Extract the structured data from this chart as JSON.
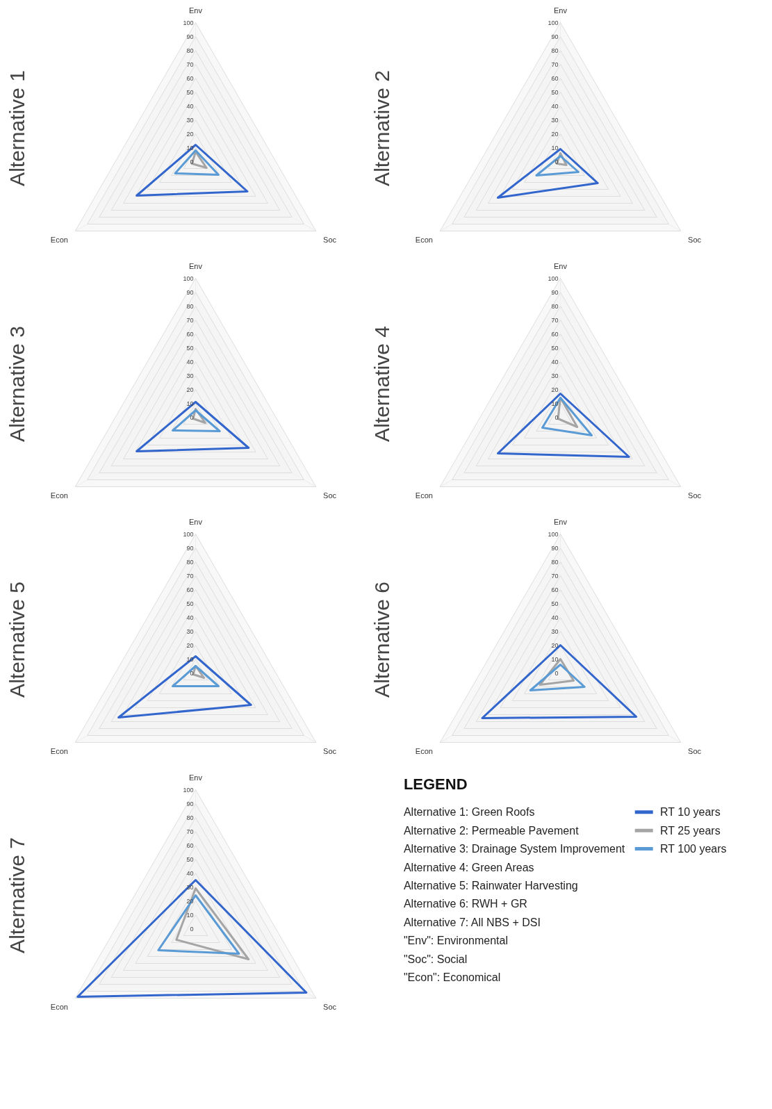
{
  "chart_data": [
    {
      "type": "radar",
      "title": "Alternative 1",
      "categories": [
        "Env",
        "Soc",
        "Econ"
      ],
      "ylim": [
        0,
        100
      ],
      "yticks": [
        0,
        10,
        20,
        30,
        40,
        50,
        60,
        70,
        80,
        90,
        100
      ],
      "series": [
        {
          "name": "RT 10 years",
          "color": "#3366cc",
          "values": [
            12,
            43,
            49
          ]
        },
        {
          "name": "RT 25 years",
          "color": "#a5a5a5",
          "values": [
            7,
            9,
            3
          ]
        },
        {
          "name": "RT 100 years",
          "color": "#5b9bd5",
          "values": [
            8,
            19,
            17
          ]
        }
      ]
    },
    {
      "type": "radar",
      "title": "Alternative 2",
      "categories": [
        "Env",
        "Soc",
        "Econ"
      ],
      "ylim": [
        0,
        100
      ],
      "yticks": [
        0,
        10,
        20,
        30,
        40,
        50,
        60,
        70,
        80,
        90,
        100
      ],
      "series": [
        {
          "color": "#3366cc",
          "values": [
            9,
            31,
            52
          ]
        },
        {
          "color": "#a5a5a5",
          "values": [
            6,
            5,
            3
          ]
        },
        {
          "color": "#5b9bd5",
          "values": [
            4,
            15,
            20
          ]
        }
      ]
    },
    {
      "type": "radar",
      "title": "Alternative 3",
      "categories": [
        "Env",
        "Soc",
        "Econ"
      ],
      "ylim": [
        0,
        100
      ],
      "yticks": [
        0,
        10,
        20,
        30,
        40,
        50,
        60,
        70,
        80,
        90,
        100
      ],
      "series": [
        {
          "color": "#3366cc",
          "values": [
            11,
            44,
            49
          ]
        },
        {
          "color": "#a5a5a5",
          "values": [
            6,
            8,
            2
          ]
        },
        {
          "color": "#5b9bd5",
          "values": [
            5,
            20,
            19
          ]
        }
      ]
    },
    {
      "type": "radar",
      "title": "Alternative 4",
      "categories": [
        "Env",
        "Soc",
        "Econ"
      ],
      "ylim": [
        0,
        100
      ],
      "yticks": [
        0,
        10,
        20,
        30,
        40,
        50,
        60,
        70,
        80,
        90,
        100
      ],
      "series": [
        {
          "color": "#3366cc",
          "values": [
            17,
            57,
            52
          ]
        },
        {
          "color": "#a5a5a5",
          "values": [
            14,
            14,
            2
          ]
        },
        {
          "color": "#5b9bd5",
          "values": [
            14,
            26,
            15
          ]
        }
      ]
    },
    {
      "type": "radar",
      "title": "Alternative 5",
      "categories": [
        "Env",
        "Soc",
        "Econ"
      ],
      "ylim": [
        0,
        100
      ],
      "yticks": [
        0,
        10,
        20,
        30,
        40,
        50,
        60,
        70,
        80,
        90,
        100
      ],
      "series": [
        {
          "color": "#3366cc",
          "values": [
            12,
            46,
            64
          ]
        },
        {
          "color": "#a5a5a5",
          "values": [
            5,
            7,
            2
          ]
        },
        {
          "color": "#5b9bd5",
          "values": [
            5,
            19,
            19
          ]
        }
      ]
    },
    {
      "type": "radar",
      "title": "Alternative 6",
      "categories": [
        "Env",
        "Soc",
        "Econ"
      ],
      "ylim": [
        0,
        100
      ],
      "yticks": [
        0,
        10,
        20,
        30,
        40,
        50,
        60,
        70,
        80,
        90,
        100
      ],
      "series": [
        {
          "color": "#3366cc",
          "values": [
            20,
            63,
            65
          ]
        },
        {
          "color": "#a5a5a5",
          "values": [
            10,
            11,
            17
          ]
        },
        {
          "color": "#5b9bd5",
          "values": [
            6,
            20,
            25
          ]
        }
      ]
    },
    {
      "type": "radar",
      "title": "Alternative 7",
      "categories": [
        "Env",
        "Soc",
        "Econ"
      ],
      "ylim": [
        0,
        100
      ],
      "yticks": [
        0,
        10,
        20,
        30,
        40,
        50,
        60,
        70,
        80,
        90,
        100
      ],
      "series": [
        {
          "color": "#3366cc",
          "values": [
            35,
            92,
            98
          ]
        },
        {
          "color": "#a5a5a5",
          "values": [
            29,
            44,
            16
          ]
        },
        {
          "color": "#5b9bd5",
          "values": [
            24,
            36,
            31
          ]
        }
      ]
    },
    {
      "type": "other",
      "title": "LEGEND",
      "annotations": [
        "Alternative 1: Green Roofs",
        "Alternative 2: Permeable Pavement",
        "Alternative 3: Drainage System Improvement",
        "Alternative 4: Green Areas",
        "Alternative 5: Rainwater Harvesting",
        "Alternative 6: RWH + GR",
        "Alternative 7: All NBS + DSI",
        "\"Env\": Environmental",
        "\"Soc\": Social",
        "\"Econ\": Economical"
      ]
    }
  ]
}
